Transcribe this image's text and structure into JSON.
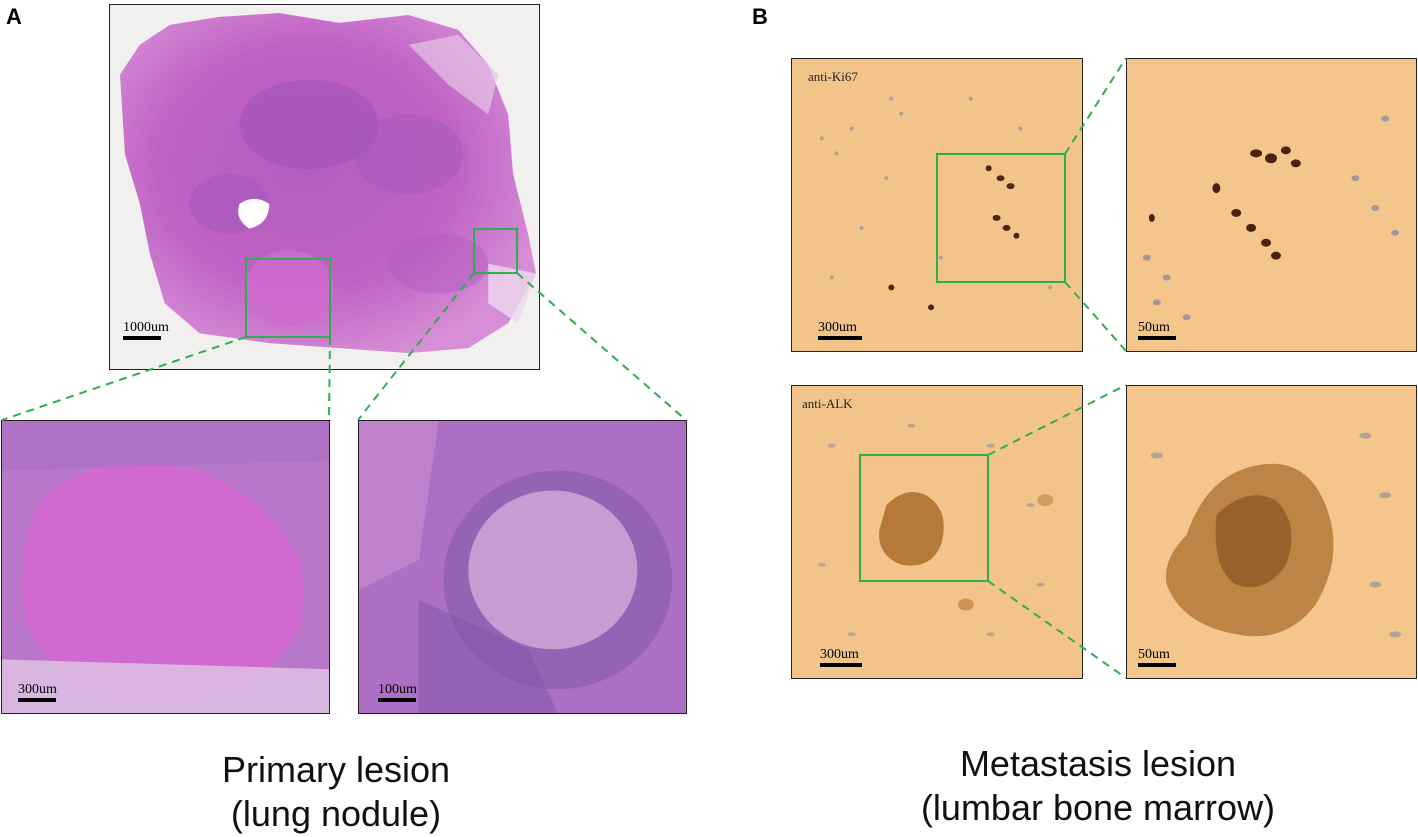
{
  "panels": {
    "a": {
      "label": "A"
    },
    "b": {
      "label": "B"
    }
  },
  "primary": {
    "overview_scale": "1000um",
    "zoom_left_scale": "300um",
    "zoom_right_scale": "100um",
    "caption_line1": "Primary lesion",
    "caption_line2": "(lung nodule)"
  },
  "metastasis": {
    "ki67_label": "anti-Ki67",
    "ki67_scale": "300um",
    "ki67_zoom_scale": "50um",
    "alk_label": "anti-ALK",
    "alk_scale": "300um",
    "alk_zoom_scale": "50um",
    "caption_line1": "Metastasis lesion",
    "caption_line2": "(lumbar bone marrow)"
  },
  "colors": {
    "he_tissue": "#c15fc4",
    "he_dark": "#7a4fb0",
    "ihc_background": "#f3c287",
    "ihc_brown": "#5a2a10",
    "callout_green": "#2eae4f"
  }
}
